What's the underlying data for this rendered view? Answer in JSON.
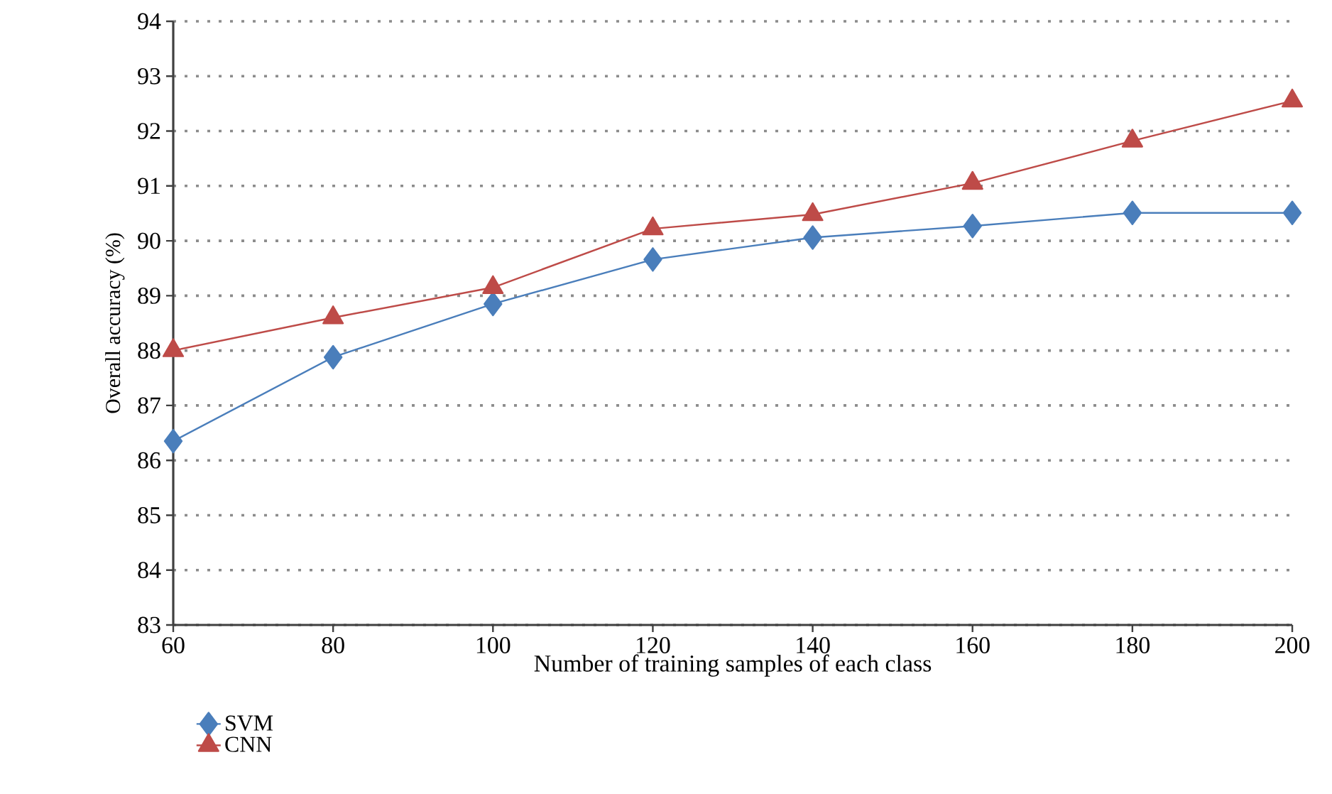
{
  "chart_data": {
    "type": "line",
    "xlabel": "Number of training samples of each class",
    "ylabel": "Overall accuracy (%)",
    "x": [
      60,
      80,
      100,
      120,
      140,
      160,
      180,
      200
    ],
    "series": [
      {
        "name": "SVM",
        "color": "#4a7ebb",
        "marker": "diamond",
        "values": [
          86.35,
          87.88,
          88.85,
          89.66,
          90.06,
          90.27,
          90.51,
          90.51
        ]
      },
      {
        "name": "CNN",
        "color": "#be4b48",
        "marker": "triangle",
        "values": [
          88.0,
          88.6,
          89.15,
          90.22,
          90.48,
          91.05,
          91.82,
          92.55
        ]
      }
    ],
    "xlim": [
      60,
      200
    ],
    "ylim": [
      83,
      94
    ],
    "xticks": [
      60,
      80,
      100,
      120,
      140,
      160,
      180,
      200
    ],
    "yticks": [
      83,
      84,
      85,
      86,
      87,
      88,
      89,
      90,
      91,
      92,
      93,
      94
    ],
    "grid": "y",
    "legend": "bottom left",
    "line_style": "solid"
  }
}
